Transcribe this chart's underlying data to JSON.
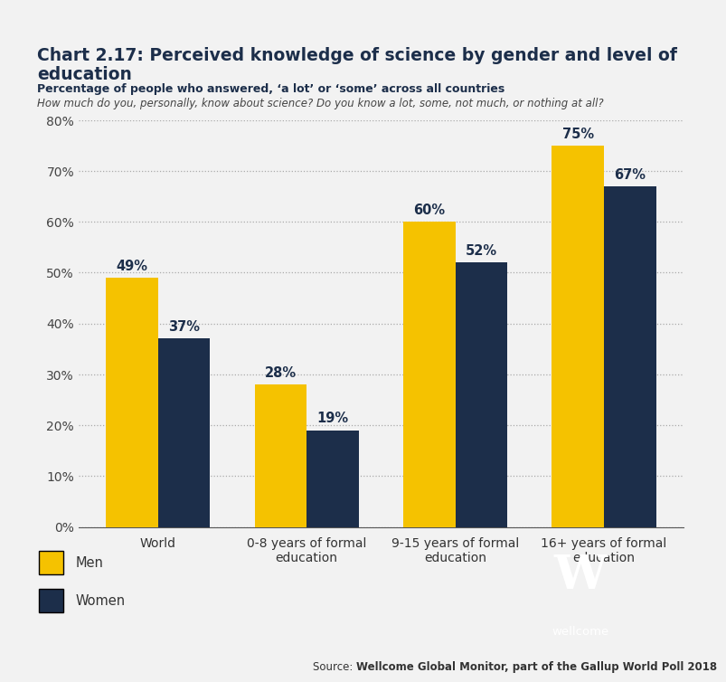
{
  "title_line1": "Chart 2.17: Perceived knowledge of science by gender and level of",
  "title_line2": "education",
  "subtitle_bold": "Percentage of people who answered, ‘a lot’ or ‘some’ across all countries",
  "subtitle_italic": "How much do you, personally, know about science? Do you know a lot, some, not much, or nothing at all?",
  "categories": [
    "World",
    "0-8 years of formal\neducation",
    "9-15 years of formal\neducation",
    "16+ years of formal\neducation"
  ],
  "men_values": [
    49,
    28,
    60,
    75
  ],
  "women_values": [
    37,
    19,
    52,
    67
  ],
  "men_color": "#F5C200",
  "women_color": "#1C2E4A",
  "ylim": [
    0,
    80
  ],
  "yticks": [
    0,
    10,
    20,
    30,
    40,
    50,
    60,
    70,
    80
  ],
  "ytick_labels": [
    "0%",
    "10%",
    "20%",
    "30%",
    "40%",
    "50%",
    "60%",
    "70%",
    "80%"
  ],
  "background_color": "#F2F2F2",
  "top_bar_color": "#1C2E4A",
  "source_text": "Source: ",
  "source_bold": "Wellcome Global Monitor, part of the Gallup World Poll 2018",
  "wellcome_box_color": "#1C2E4A"
}
